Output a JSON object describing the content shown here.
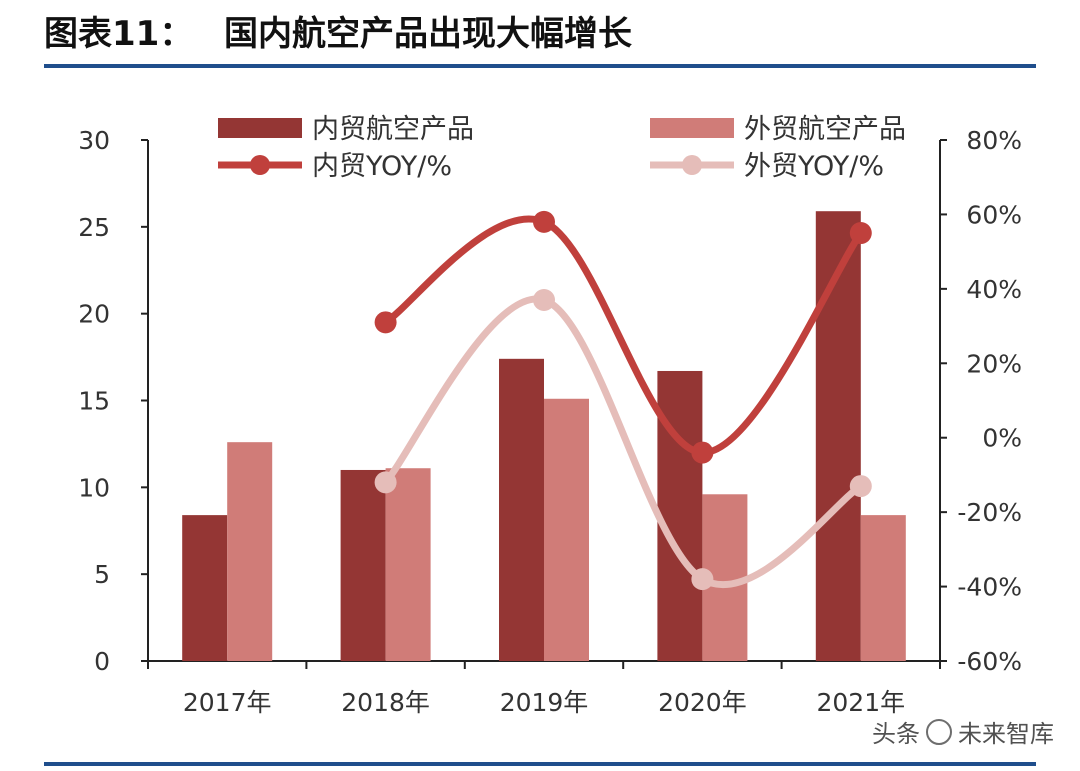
{
  "header": {
    "figure_label": "图表11：",
    "figure_title": "国内航空产品出现大幅增长"
  },
  "watermark": {
    "source": "头条",
    "brand": "未来智库"
  },
  "colors": {
    "domestic": "#943634",
    "foreign": "#d07c78",
    "domestic_line": "#c0403c",
    "foreign_line": "#e5bdb9",
    "rule": "#1f4e8c"
  },
  "chart_data": {
    "type": "bar",
    "categories": [
      "2017年",
      "2018年",
      "2019年",
      "2020年",
      "2021年"
    ],
    "series": [
      {
        "name": "内贸航空产品",
        "kind": "bar",
        "axis": "left",
        "values": [
          8.4,
          11.0,
          17.4,
          16.7,
          25.9
        ]
      },
      {
        "name": "外贸航空产品",
        "kind": "bar",
        "axis": "left",
        "values": [
          12.6,
          11.1,
          15.1,
          9.6,
          8.4
        ]
      },
      {
        "name": "内贸YOY/%",
        "kind": "line",
        "axis": "right",
        "values": [
          null,
          31,
          58,
          -4,
          55
        ]
      },
      {
        "name": "外贸YOY/%",
        "kind": "line",
        "axis": "right",
        "values": [
          null,
          -12,
          37,
          -38,
          -13
        ]
      }
    ],
    "y_left": {
      "min": 0,
      "max": 30,
      "ticks": [
        "0",
        "5",
        "10",
        "15",
        "20",
        "25",
        "30"
      ]
    },
    "y_right": {
      "min": -60,
      "max": 80,
      "ticks": [
        "-60%",
        "-40%",
        "-20%",
        "0%",
        "20%",
        "40%",
        "60%",
        "80%"
      ]
    },
    "legend": "top",
    "grid": false
  }
}
